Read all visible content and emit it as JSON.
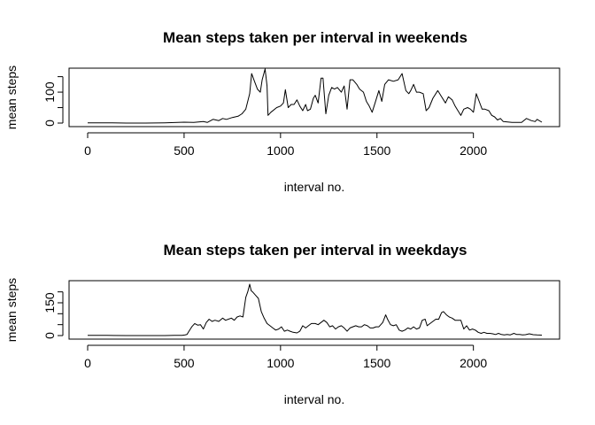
{
  "chart_data": [
    {
      "type": "line",
      "title": "Mean steps taken per interval in weekends",
      "xlabel": "interval no.",
      "ylabel": "mean steps",
      "xlim": [
        0,
        2355
      ],
      "ylim": [
        0,
        166
      ],
      "xticks": [
        0,
        500,
        1000,
        1500,
        2000
      ],
      "yticks": [
        0,
        100
      ],
      "minor_yticks": [
        50,
        150
      ],
      "series": [
        {
          "color": "#000000",
          "points": [
            [
              0,
              1
            ],
            [
              100,
              1
            ],
            [
              200,
              0
            ],
            [
              300,
              0
            ],
            [
              400,
              1
            ],
            [
              500,
              3
            ],
            [
              550,
              2
            ],
            [
              600,
              5
            ],
            [
              620,
              2
            ],
            [
              650,
              12
            ],
            [
              680,
              8
            ],
            [
              700,
              15
            ],
            [
              720,
              12
            ],
            [
              750,
              18
            ],
            [
              780,
              22
            ],
            [
              800,
              30
            ],
            [
              820,
              45
            ],
            [
              840,
              95
            ],
            [
              850,
              160
            ],
            [
              865,
              135
            ],
            [
              880,
              110
            ],
            [
              895,
              100
            ],
            [
              905,
              140
            ],
            [
              920,
              175
            ],
            [
              930,
              120
            ],
            [
              935,
              25
            ],
            [
              950,
              35
            ],
            [
              980,
              50
            ],
            [
              1000,
              55
            ],
            [
              1015,
              65
            ],
            [
              1025,
              108
            ],
            [
              1040,
              50
            ],
            [
              1055,
              60
            ],
            [
              1070,
              60
            ],
            [
              1085,
              75
            ],
            [
              1100,
              55
            ],
            [
              1115,
              40
            ],
            [
              1130,
              60
            ],
            [
              1140,
              40
            ],
            [
              1155,
              45
            ],
            [
              1170,
              80
            ],
            [
              1180,
              90
            ],
            [
              1195,
              65
            ],
            [
              1210,
              145
            ],
            [
              1220,
              145
            ],
            [
              1235,
              30
            ],
            [
              1250,
              90
            ],
            [
              1265,
              115
            ],
            [
              1280,
              110
            ],
            [
              1295,
              115
            ],
            [
              1315,
              100
            ],
            [
              1330,
              120
            ],
            [
              1345,
              45
            ],
            [
              1360,
              140
            ],
            [
              1375,
              140
            ],
            [
              1395,
              125
            ],
            [
              1410,
              110
            ],
            [
              1430,
              100
            ],
            [
              1445,
              70
            ],
            [
              1460,
              55
            ],
            [
              1475,
              35
            ],
            [
              1490,
              65
            ],
            [
              1510,
              105
            ],
            [
              1525,
              70
            ],
            [
              1540,
              125
            ],
            [
              1560,
              140
            ],
            [
              1585,
              135
            ],
            [
              1610,
              140
            ],
            [
              1630,
              160
            ],
            [
              1650,
              105
            ],
            [
              1665,
              95
            ],
            [
              1675,
              105
            ],
            [
              1690,
              125
            ],
            [
              1705,
              100
            ],
            [
              1720,
              100
            ],
            [
              1740,
              95
            ],
            [
              1755,
              40
            ],
            [
              1770,
              50
            ],
            [
              1790,
              80
            ],
            [
              1815,
              105
            ],
            [
              1835,
              85
            ],
            [
              1855,
              65
            ],
            [
              1870,
              85
            ],
            [
              1890,
              75
            ],
            [
              1905,
              55
            ],
            [
              1920,
              40
            ],
            [
              1935,
              25
            ],
            [
              1950,
              45
            ],
            [
              1970,
              50
            ],
            [
              1985,
              45
            ],
            [
              2000,
              35
            ],
            [
              2015,
              95
            ],
            [
              2030,
              70
            ],
            [
              2045,
              45
            ],
            [
              2060,
              45
            ],
            [
              2080,
              40
            ],
            [
              2095,
              25
            ],
            [
              2110,
              20
            ],
            [
              2125,
              10
            ],
            [
              2140,
              15
            ],
            [
              2155,
              5
            ],
            [
              2200,
              2
            ],
            [
              2250,
              2
            ],
            [
              2275,
              15
            ],
            [
              2300,
              8
            ],
            [
              2320,
              5
            ],
            [
              2330,
              12
            ],
            [
              2355,
              3
            ]
          ]
        }
      ]
    },
    {
      "type": "line",
      "title": "Mean steps taken per interval in weekdays",
      "xlabel": "interval no.",
      "ylabel": "mean steps",
      "xlim": [
        0,
        2355
      ],
      "ylim": [
        0,
        235
      ],
      "xticks": [
        0,
        500,
        1000,
        1500,
        2000
      ],
      "yticks": [
        0,
        150
      ],
      "minor_yticks": [
        50,
        100,
        200
      ],
      "series": [
        {
          "color": "#000000",
          "points": [
            [
              0,
              1
            ],
            [
              100,
              1
            ],
            [
              200,
              0
            ],
            [
              300,
              0
            ],
            [
              400,
              0
            ],
            [
              450,
              1
            ],
            [
              490,
              1
            ],
            [
              505,
              3
            ],
            [
              515,
              5
            ],
            [
              525,
              20
            ],
            [
              540,
              40
            ],
            [
              555,
              55
            ],
            [
              570,
              48
            ],
            [
              585,
              50
            ],
            [
              600,
              30
            ],
            [
              615,
              60
            ],
            [
              630,
              75
            ],
            [
              645,
              65
            ],
            [
              660,
              70
            ],
            [
              680,
              65
            ],
            [
              700,
              80
            ],
            [
              715,
              70
            ],
            [
              730,
              75
            ],
            [
              745,
              80
            ],
            [
              760,
              70
            ],
            [
              775,
              85
            ],
            [
              790,
              90
            ],
            [
              805,
              85
            ],
            [
              820,
              175
            ],
            [
              830,
              200
            ],
            [
              840,
              235
            ],
            [
              848,
              205
            ],
            [
              855,
              200
            ],
            [
              870,
              185
            ],
            [
              885,
              170
            ],
            [
              900,
              110
            ],
            [
              915,
              80
            ],
            [
              930,
              55
            ],
            [
              945,
              45
            ],
            [
              960,
              35
            ],
            [
              975,
              25
            ],
            [
              990,
              30
            ],
            [
              1005,
              40
            ],
            [
              1020,
              20
            ],
            [
              1035,
              25
            ],
            [
              1050,
              20
            ],
            [
              1065,
              15
            ],
            [
              1085,
              12
            ],
            [
              1100,
              20
            ],
            [
              1115,
              45
            ],
            [
              1130,
              35
            ],
            [
              1145,
              45
            ],
            [
              1160,
              55
            ],
            [
              1180,
              55
            ],
            [
              1195,
              50
            ],
            [
              1210,
              60
            ],
            [
              1225,
              70
            ],
            [
              1240,
              60
            ],
            [
              1255,
              40
            ],
            [
              1270,
              45
            ],
            [
              1285,
              30
            ],
            [
              1300,
              40
            ],
            [
              1315,
              45
            ],
            [
              1330,
              35
            ],
            [
              1345,
              20
            ],
            [
              1360,
              35
            ],
            [
              1375,
              40
            ],
            [
              1390,
              45
            ],
            [
              1405,
              40
            ],
            [
              1420,
              40
            ],
            [
              1435,
              50
            ],
            [
              1450,
              45
            ],
            [
              1465,
              35
            ],
            [
              1480,
              35
            ],
            [
              1495,
              40
            ],
            [
              1510,
              40
            ],
            [
              1530,
              60
            ],
            [
              1545,
              95
            ],
            [
              1555,
              75
            ],
            [
              1570,
              50
            ],
            [
              1585,
              45
            ],
            [
              1600,
              50
            ],
            [
              1615,
              25
            ],
            [
              1630,
              20
            ],
            [
              1645,
              25
            ],
            [
              1660,
              35
            ],
            [
              1675,
              30
            ],
            [
              1690,
              40
            ],
            [
              1705,
              30
            ],
            [
              1720,
              35
            ],
            [
              1735,
              70
            ],
            [
              1750,
              75
            ],
            [
              1760,
              45
            ],
            [
              1775,
              55
            ],
            [
              1790,
              65
            ],
            [
              1805,
              75
            ],
            [
              1820,
              75
            ],
            [
              1835,
              105
            ],
            [
              1845,
              110
            ],
            [
              1860,
              95
            ],
            [
              1875,
              85
            ],
            [
              1890,
              80
            ],
            [
              1905,
              70
            ],
            [
              1920,
              70
            ],
            [
              1935,
              70
            ],
            [
              1950,
              30
            ],
            [
              1965,
              45
            ],
            [
              1980,
              25
            ],
            [
              1995,
              30
            ],
            [
              2010,
              25
            ],
            [
              2025,
              15
            ],
            [
              2040,
              10
            ],
            [
              2055,
              15
            ],
            [
              2070,
              10
            ],
            [
              2085,
              10
            ],
            [
              2100,
              8
            ],
            [
              2115,
              5
            ],
            [
              2130,
              10
            ],
            [
              2145,
              5
            ],
            [
              2160,
              3
            ],
            [
              2175,
              5
            ],
            [
              2190,
              3
            ],
            [
              2210,
              10
            ],
            [
              2225,
              5
            ],
            [
              2240,
              5
            ],
            [
              2255,
              3
            ],
            [
              2270,
              4
            ],
            [
              2290,
              8
            ],
            [
              2310,
              4
            ],
            [
              2330,
              3
            ],
            [
              2355,
              2
            ]
          ]
        }
      ]
    }
  ]
}
